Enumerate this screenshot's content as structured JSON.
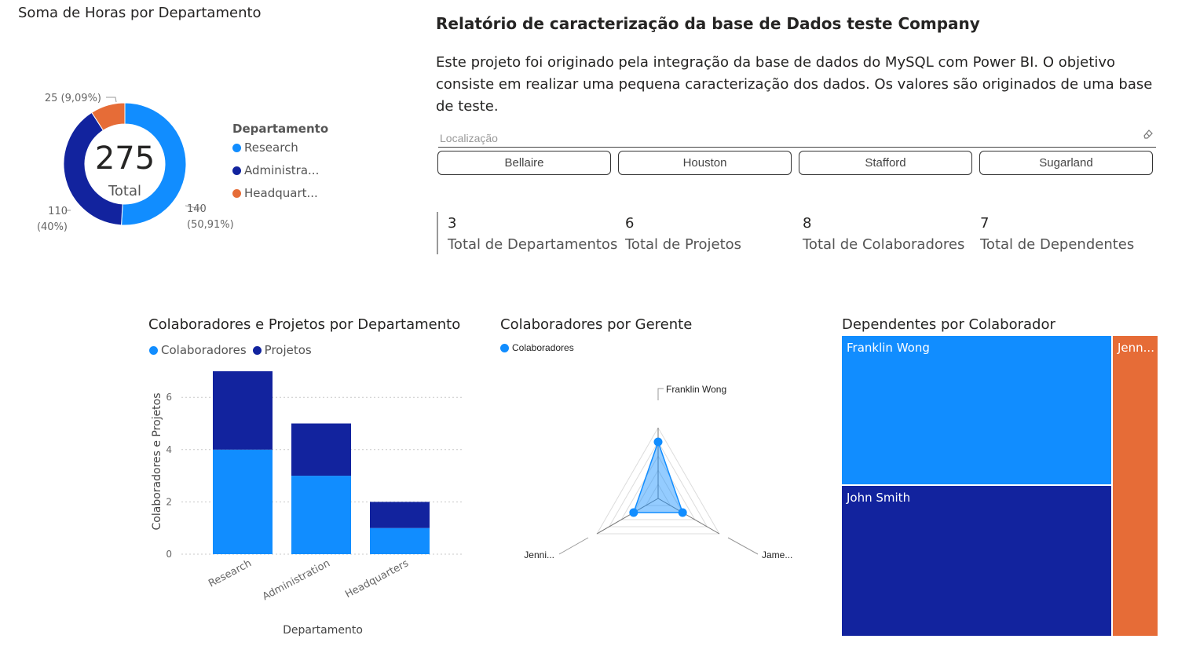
{
  "colors": {
    "research": "#118DFF",
    "administration": "#12239E",
    "headquarters": "#E66C37"
  },
  "donut": {
    "title": "Soma de Horas por Departamento",
    "center_value": "275",
    "center_label": "Total",
    "legend_title": "Departamento",
    "legend": [
      "Research",
      "Administra...",
      "Headquart..."
    ],
    "labels": {
      "a": "140",
      "a_pct": "(50,91%)",
      "b": "110",
      "b_pct": "(40%)",
      "c": "25 (9,09%)"
    }
  },
  "report": {
    "title": "Relatório de caracterização da base de Dados teste Company",
    "description": "Este projeto foi originado pela integração da base de dados do MySQL com Power BI. O objetivo consiste em realizar uma pequena caracterização dos dados. Os valores são originados de uma base de teste."
  },
  "slicer": {
    "label": "Localização",
    "options": [
      "Bellaire",
      "Houston",
      "Stafford",
      "Sugarland"
    ]
  },
  "kpis": [
    {
      "value": "3",
      "label": "Total de Departamentos"
    },
    {
      "value": "6",
      "label": "Total de Projetos"
    },
    {
      "value": "8",
      "label": "Total de Colaboradores"
    },
    {
      "value": "7",
      "label": "Total de Dependentes"
    }
  ],
  "bar": {
    "title": "Colaboradores e Projetos por Departamento",
    "legend": [
      "Colaboradores",
      "Projetos"
    ],
    "ylabel": "Colaboradores e Projetos",
    "xlabel": "Departamento",
    "ticks": [
      "0",
      "2",
      "4",
      "6"
    ]
  },
  "radar": {
    "title": "Colaboradores por Gerente",
    "legend": "Colaboradores",
    "labels": [
      "Franklin Wong",
      "Jame...",
      "Jenni..."
    ]
  },
  "treemap": {
    "title": "Dependentes por Colaborador",
    "labels": [
      "Franklin Wong",
      "John Smith",
      "Jenn..."
    ]
  },
  "chart_data": [
    {
      "type": "pie",
      "title": "Soma de Horas por Departamento",
      "categories": [
        "Research",
        "Administration",
        "Headquarters"
      ],
      "values": [
        140,
        110,
        25
      ],
      "total": 275,
      "legend_placement": "right"
    },
    {
      "type": "bar",
      "stacked": true,
      "title": "Colaboradores e Projetos por Departamento",
      "categories": [
        "Research",
        "Administration",
        "Headquarters"
      ],
      "series": [
        {
          "name": "Colaboradores",
          "values": [
            4,
            3,
            1
          ]
        },
        {
          "name": "Projetos",
          "values": [
            3,
            2,
            1
          ]
        }
      ],
      "xlabel": "Departamento",
      "ylabel": "Colaboradores e Projetos",
      "ylim": [
        0,
        7
      ],
      "grid": true,
      "legend_placement": "top-left"
    },
    {
      "type": "radar",
      "title": "Colaboradores por Gerente",
      "categories": [
        "Franklin Wong",
        "Jame...",
        "Jenni..."
      ],
      "series": [
        {
          "name": "Colaboradores",
          "values": [
            4,
            2,
            2
          ]
        }
      ],
      "rmax": 5
    },
    {
      "type": "treemap",
      "title": "Dependentes por Colaborador",
      "categories": [
        "Franklin Wong",
        "John Smith",
        "Jenn..."
      ],
      "values": [
        3,
        3,
        1
      ]
    }
  ]
}
